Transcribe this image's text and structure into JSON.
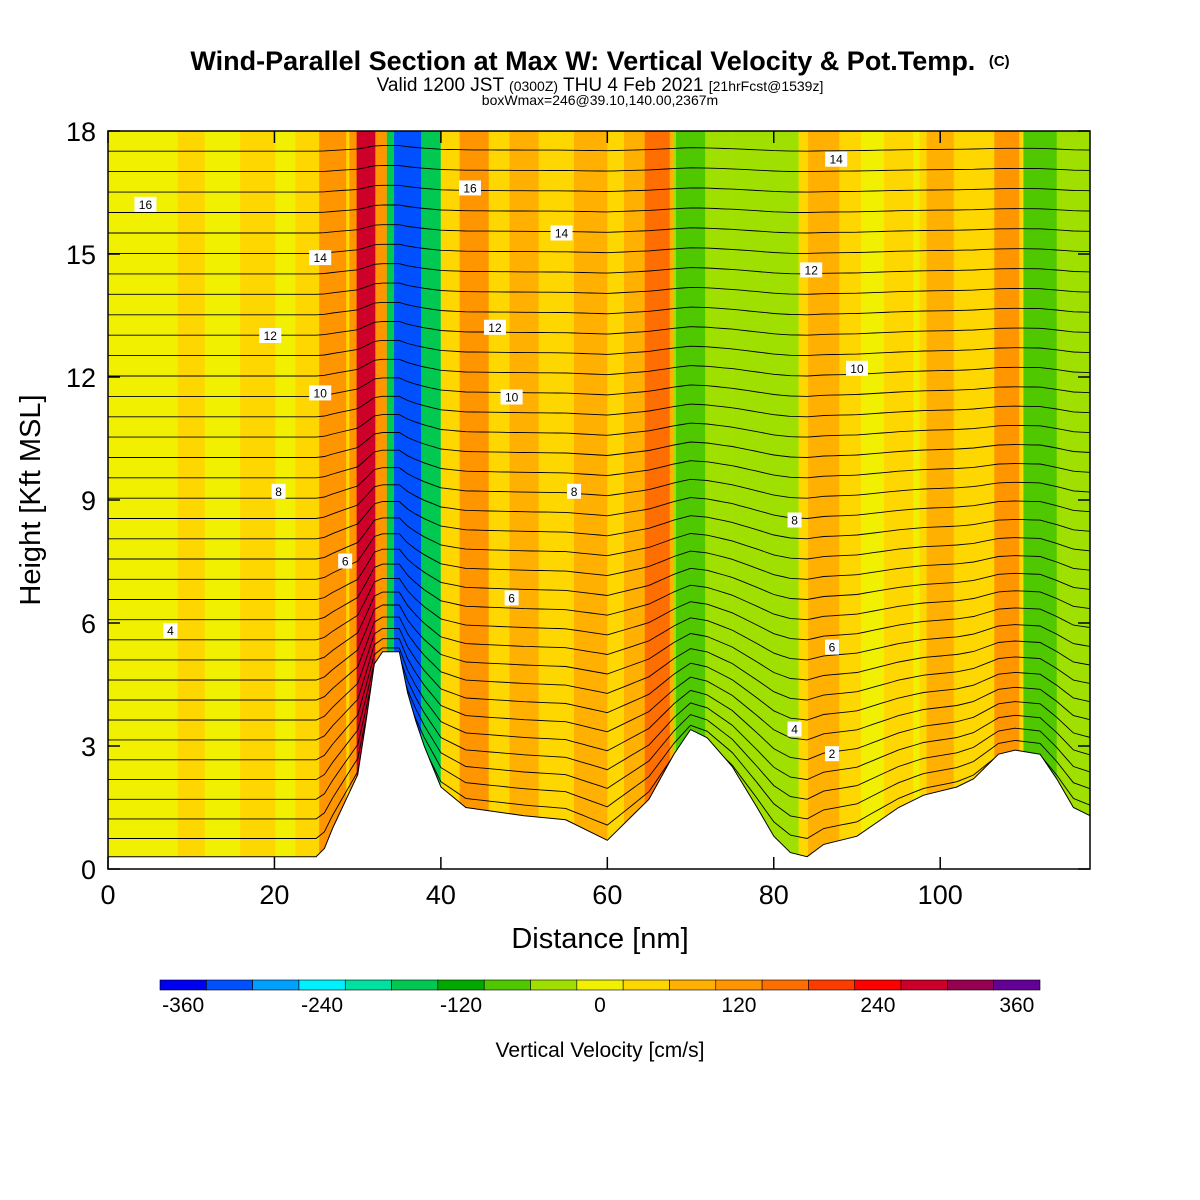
{
  "chart_data": {
    "type": "heatmap",
    "title": "Wind-Parallel Section at Max W: Vertical Velocity & Pot.Temp.",
    "title_mark": "(C)",
    "subtitle_parts": [
      "Valid 1200 JST ",
      "(0300Z)",
      " THU 4 Feb 2021 ",
      "[21hrFcst@1539z]"
    ],
    "subtitle2": "boxWmax=246@39.10,140.00,2367m",
    "xlabel": "Distance [nm]",
    "ylabel": "Height [Kft MSL]",
    "xlim": [
      0,
      118
    ],
    "ylim": [
      0,
      18
    ],
    "xticks": [
      "0",
      "20",
      "40",
      "60",
      "80",
      "100"
    ],
    "yticks": [
      "0",
      "3",
      "6",
      "9",
      "12",
      "15",
      "18"
    ],
    "colorbar": {
      "label": "Vertical Velocity [cm/s]",
      "range": [
        -380,
        380
      ],
      "step": 40,
      "tick_labels": [
        "-360",
        "-240",
        "-120",
        "0",
        "120",
        "240",
        "360"
      ],
      "colors": [
        "#0000f0",
        "#0050ff",
        "#00a0ff",
        "#00f0ff",
        "#00e0a0",
        "#00c850",
        "#00a800",
        "#50c800",
        "#a0e000",
        "#f0f000",
        "#ffd700",
        "#ffb000",
        "#ff9600",
        "#ff6e00",
        "#ff3c00",
        "#ff0000",
        "#cc0028",
        "#960050",
        "#640096"
      ]
    },
    "updraft_max_series": {
      "name": "w",
      "x": [
        5,
        10,
        18,
        27,
        31,
        36,
        44,
        50,
        58,
        66,
        70,
        80,
        86,
        95,
        100,
        108,
        112
      ],
      "values": [
        10,
        40,
        20,
        120,
        280,
        -330,
        120,
        60,
        90,
        140,
        -80,
        -60,
        60,
        40,
        90,
        120,
        -90
      ]
    },
    "contour_labels": [
      {
        "text": "16",
        "x": 4.5,
        "y": 16.2
      },
      {
        "text": "14",
        "x": 25.5,
        "y": 14.9
      },
      {
        "text": "12",
        "x": 19.5,
        "y": 13.0
      },
      {
        "text": "10",
        "x": 25.5,
        "y": 11.6
      },
      {
        "text": "8",
        "x": 20.5,
        "y": 9.2
      },
      {
        "text": "6",
        "x": 28.5,
        "y": 7.5
      },
      {
        "text": "4",
        "x": 7.5,
        "y": 5.8
      },
      {
        "text": "16",
        "x": 43.5,
        "y": 16.6
      },
      {
        "text": "14",
        "x": 54.5,
        "y": 15.5
      },
      {
        "text": "12",
        "x": 46.5,
        "y": 13.2
      },
      {
        "text": "10",
        "x": 48.5,
        "y": 11.5
      },
      {
        "text": "8",
        "x": 56.0,
        "y": 9.2
      },
      {
        "text": "6",
        "x": 48.5,
        "y": 6.6
      },
      {
        "text": "14",
        "x": 87.5,
        "y": 17.3
      },
      {
        "text": "12",
        "x": 84.5,
        "y": 14.6
      },
      {
        "text": "10",
        "x": 90.0,
        "y": 12.2
      },
      {
        "text": "8",
        "x": 82.5,
        "y": 8.5
      },
      {
        "text": "6",
        "x": 87.0,
        "y": 5.4
      },
      {
        "text": "4",
        "x": 82.5,
        "y": 3.4
      },
      {
        "text": "2",
        "x": 87.0,
        "y": 2.8
      }
    ],
    "terrain": {
      "x": [
        0,
        25,
        26,
        27,
        30,
        31,
        32,
        33,
        35,
        36,
        37,
        38,
        40,
        43,
        50,
        55,
        60,
        65,
        68,
        70,
        72,
        75,
        78,
        80,
        82,
        84,
        86,
        90,
        95,
        98,
        102,
        104,
        107,
        109,
        112,
        114,
        116,
        118
      ],
      "y": [
        0.3,
        0.3,
        0.5,
        1.0,
        2.3,
        3.6,
        5.0,
        5.3,
        5.3,
        4.3,
        3.6,
        3.0,
        2.0,
        1.5,
        1.3,
        1.2,
        0.7,
        1.7,
        2.8,
        3.4,
        3.2,
        2.5,
        1.5,
        0.8,
        0.4,
        0.3,
        0.6,
        0.8,
        1.5,
        1.8,
        2.0,
        2.2,
        2.8,
        2.9,
        2.8,
        2.2,
        1.5,
        1.3
      ]
    }
  }
}
